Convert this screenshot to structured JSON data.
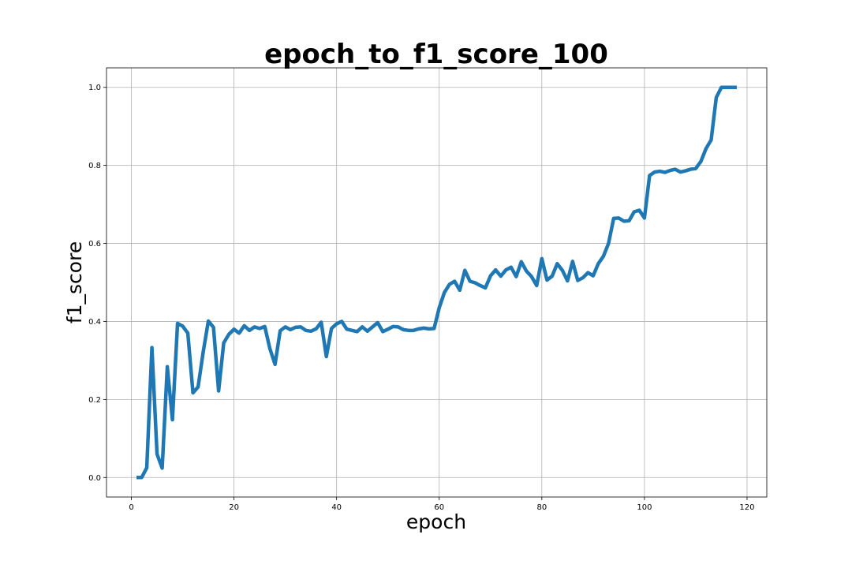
{
  "chart_data": {
    "type": "line",
    "title": "epoch_to_f1_score_100",
    "xlabel": "epoch",
    "ylabel": "f1_score",
    "xlim": [
      -4.85,
      123.85
    ],
    "ylim": [
      -0.05,
      1.05
    ],
    "xticks": [
      0,
      20,
      40,
      60,
      80,
      100,
      120
    ],
    "xtick_labels": [
      "0",
      "20",
      "40",
      "60",
      "80",
      "100",
      "120"
    ],
    "yticks": [
      0.0,
      0.2,
      0.4,
      0.6,
      0.8,
      1.0
    ],
    "ytick_labels": [
      "0.0",
      "0.2",
      "0.4",
      "0.6",
      "0.8",
      "1.0"
    ],
    "grid": true,
    "series": [
      {
        "color": "#1f77b4",
        "x": [
          1,
          2,
          3,
          4,
          5,
          6,
          7,
          8,
          9,
          10,
          11,
          12,
          13,
          14,
          15,
          16,
          17,
          18,
          19,
          20,
          21,
          22,
          23,
          24,
          25,
          26,
          27,
          28,
          29,
          30,
          31,
          32,
          33,
          34,
          35,
          36,
          37,
          38,
          39,
          40,
          41,
          42,
          43,
          44,
          45,
          46,
          47,
          48,
          49,
          50,
          51,
          52,
          53,
          54,
          55,
          56,
          57,
          58,
          59,
          60,
          61,
          62,
          63,
          64,
          65,
          66,
          67,
          68,
          69,
          70,
          71,
          72,
          73,
          74,
          75,
          76,
          77,
          78,
          79,
          80,
          81,
          82,
          83,
          84,
          85,
          86,
          87,
          88,
          89,
          90,
          91,
          92,
          93,
          94,
          95,
          96,
          97,
          98,
          99,
          100,
          101,
          102,
          103,
          104,
          105,
          106,
          107,
          108,
          109,
          110,
          111,
          112,
          113,
          114,
          115,
          116,
          117,
          118
        ],
        "values": [
          0.0,
          0.0,
          0.025,
          0.333,
          0.06,
          0.024,
          0.284,
          0.148,
          0.395,
          0.388,
          0.37,
          0.217,
          0.232,
          0.322,
          0.401,
          0.385,
          0.222,
          0.345,
          0.367,
          0.38,
          0.37,
          0.389,
          0.377,
          0.386,
          0.382,
          0.387,
          0.33,
          0.29,
          0.376,
          0.386,
          0.379,
          0.385,
          0.386,
          0.377,
          0.375,
          0.381,
          0.398,
          0.31,
          0.382,
          0.394,
          0.4,
          0.38,
          0.377,
          0.374,
          0.386,
          0.375,
          0.386,
          0.397,
          0.374,
          0.38,
          0.387,
          0.386,
          0.379,
          0.377,
          0.377,
          0.381,
          0.383,
          0.381,
          0.382,
          0.435,
          0.474,
          0.495,
          0.503,
          0.48,
          0.531,
          0.503,
          0.499,
          0.492,
          0.486,
          0.517,
          0.532,
          0.516,
          0.532,
          0.539,
          0.515,
          0.553,
          0.529,
          0.515,
          0.492,
          0.561,
          0.506,
          0.516,
          0.548,
          0.531,
          0.504,
          0.554,
          0.505,
          0.512,
          0.525,
          0.517,
          0.548,
          0.567,
          0.6,
          0.664,
          0.665,
          0.657,
          0.658,
          0.681,
          0.685,
          0.665,
          0.774,
          0.783,
          0.785,
          0.782,
          0.787,
          0.79,
          0.783,
          0.786,
          0.79,
          0.792,
          0.81,
          0.843,
          0.865,
          0.974,
          1.0,
          1.0,
          1.0,
          1.0
        ]
      }
    ]
  }
}
